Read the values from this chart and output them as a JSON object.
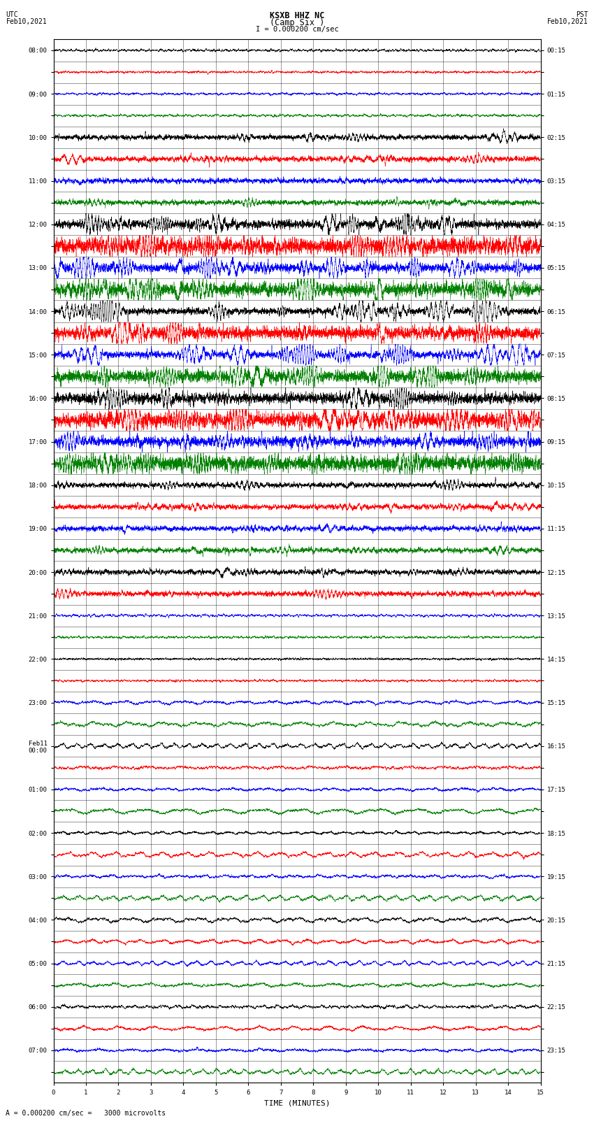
{
  "title_line1": "KSXB HHZ NC",
  "title_line2": "(Camp Six )",
  "title_scale": "I = 0.000200 cm/sec",
  "left_label_top": "UTC",
  "left_label_date": "Feb10,2021",
  "right_label_top": "PST",
  "right_label_date": "Feb10,2021",
  "xlabel": "TIME (MINUTES)",
  "bottom_note": "= 0.000200 cm/sec =   3000 microvolts",
  "left_times_utc": [
    "08:00",
    "",
    "09:00",
    "",
    "10:00",
    "",
    "11:00",
    "",
    "12:00",
    "",
    "13:00",
    "",
    "14:00",
    "",
    "15:00",
    "",
    "16:00",
    "",
    "17:00",
    "",
    "18:00",
    "",
    "19:00",
    "",
    "20:00",
    "",
    "21:00",
    "",
    "22:00",
    "",
    "23:00",
    "",
    "Feb11\n00:00",
    "",
    "01:00",
    "",
    "02:00",
    "",
    "03:00",
    "",
    "04:00",
    "",
    "05:00",
    "",
    "06:00",
    "",
    "07:00",
    ""
  ],
  "right_times_pst": [
    "00:15",
    "",
    "01:15",
    "",
    "02:15",
    "",
    "03:15",
    "",
    "04:15",
    "",
    "05:15",
    "",
    "06:15",
    "",
    "07:15",
    "",
    "08:15",
    "",
    "09:15",
    "",
    "10:15",
    "",
    "11:15",
    "",
    "12:15",
    "",
    "13:15",
    "",
    "14:15",
    "",
    "15:15",
    "",
    "16:15",
    "",
    "17:15",
    "",
    "18:15",
    "",
    "19:15",
    "",
    "20:15",
    "",
    "21:15",
    "",
    "22:15",
    "",
    "23:15",
    ""
  ],
  "num_rows": 48,
  "minutes_per_row": 15,
  "colors_cycle": [
    "black",
    "red",
    "blue",
    "green"
  ],
  "figsize": [
    8.5,
    16.13
  ],
  "dpi": 100,
  "bg_color": "white",
  "trace_linewidth": 0.35,
  "grid_color": "black",
  "grid_linewidth": 0.4,
  "tick_labelsize": 6.5,
  "title_fontsize": 8.5,
  "label_fontsize": 7,
  "xlabel_fontsize": 8
}
